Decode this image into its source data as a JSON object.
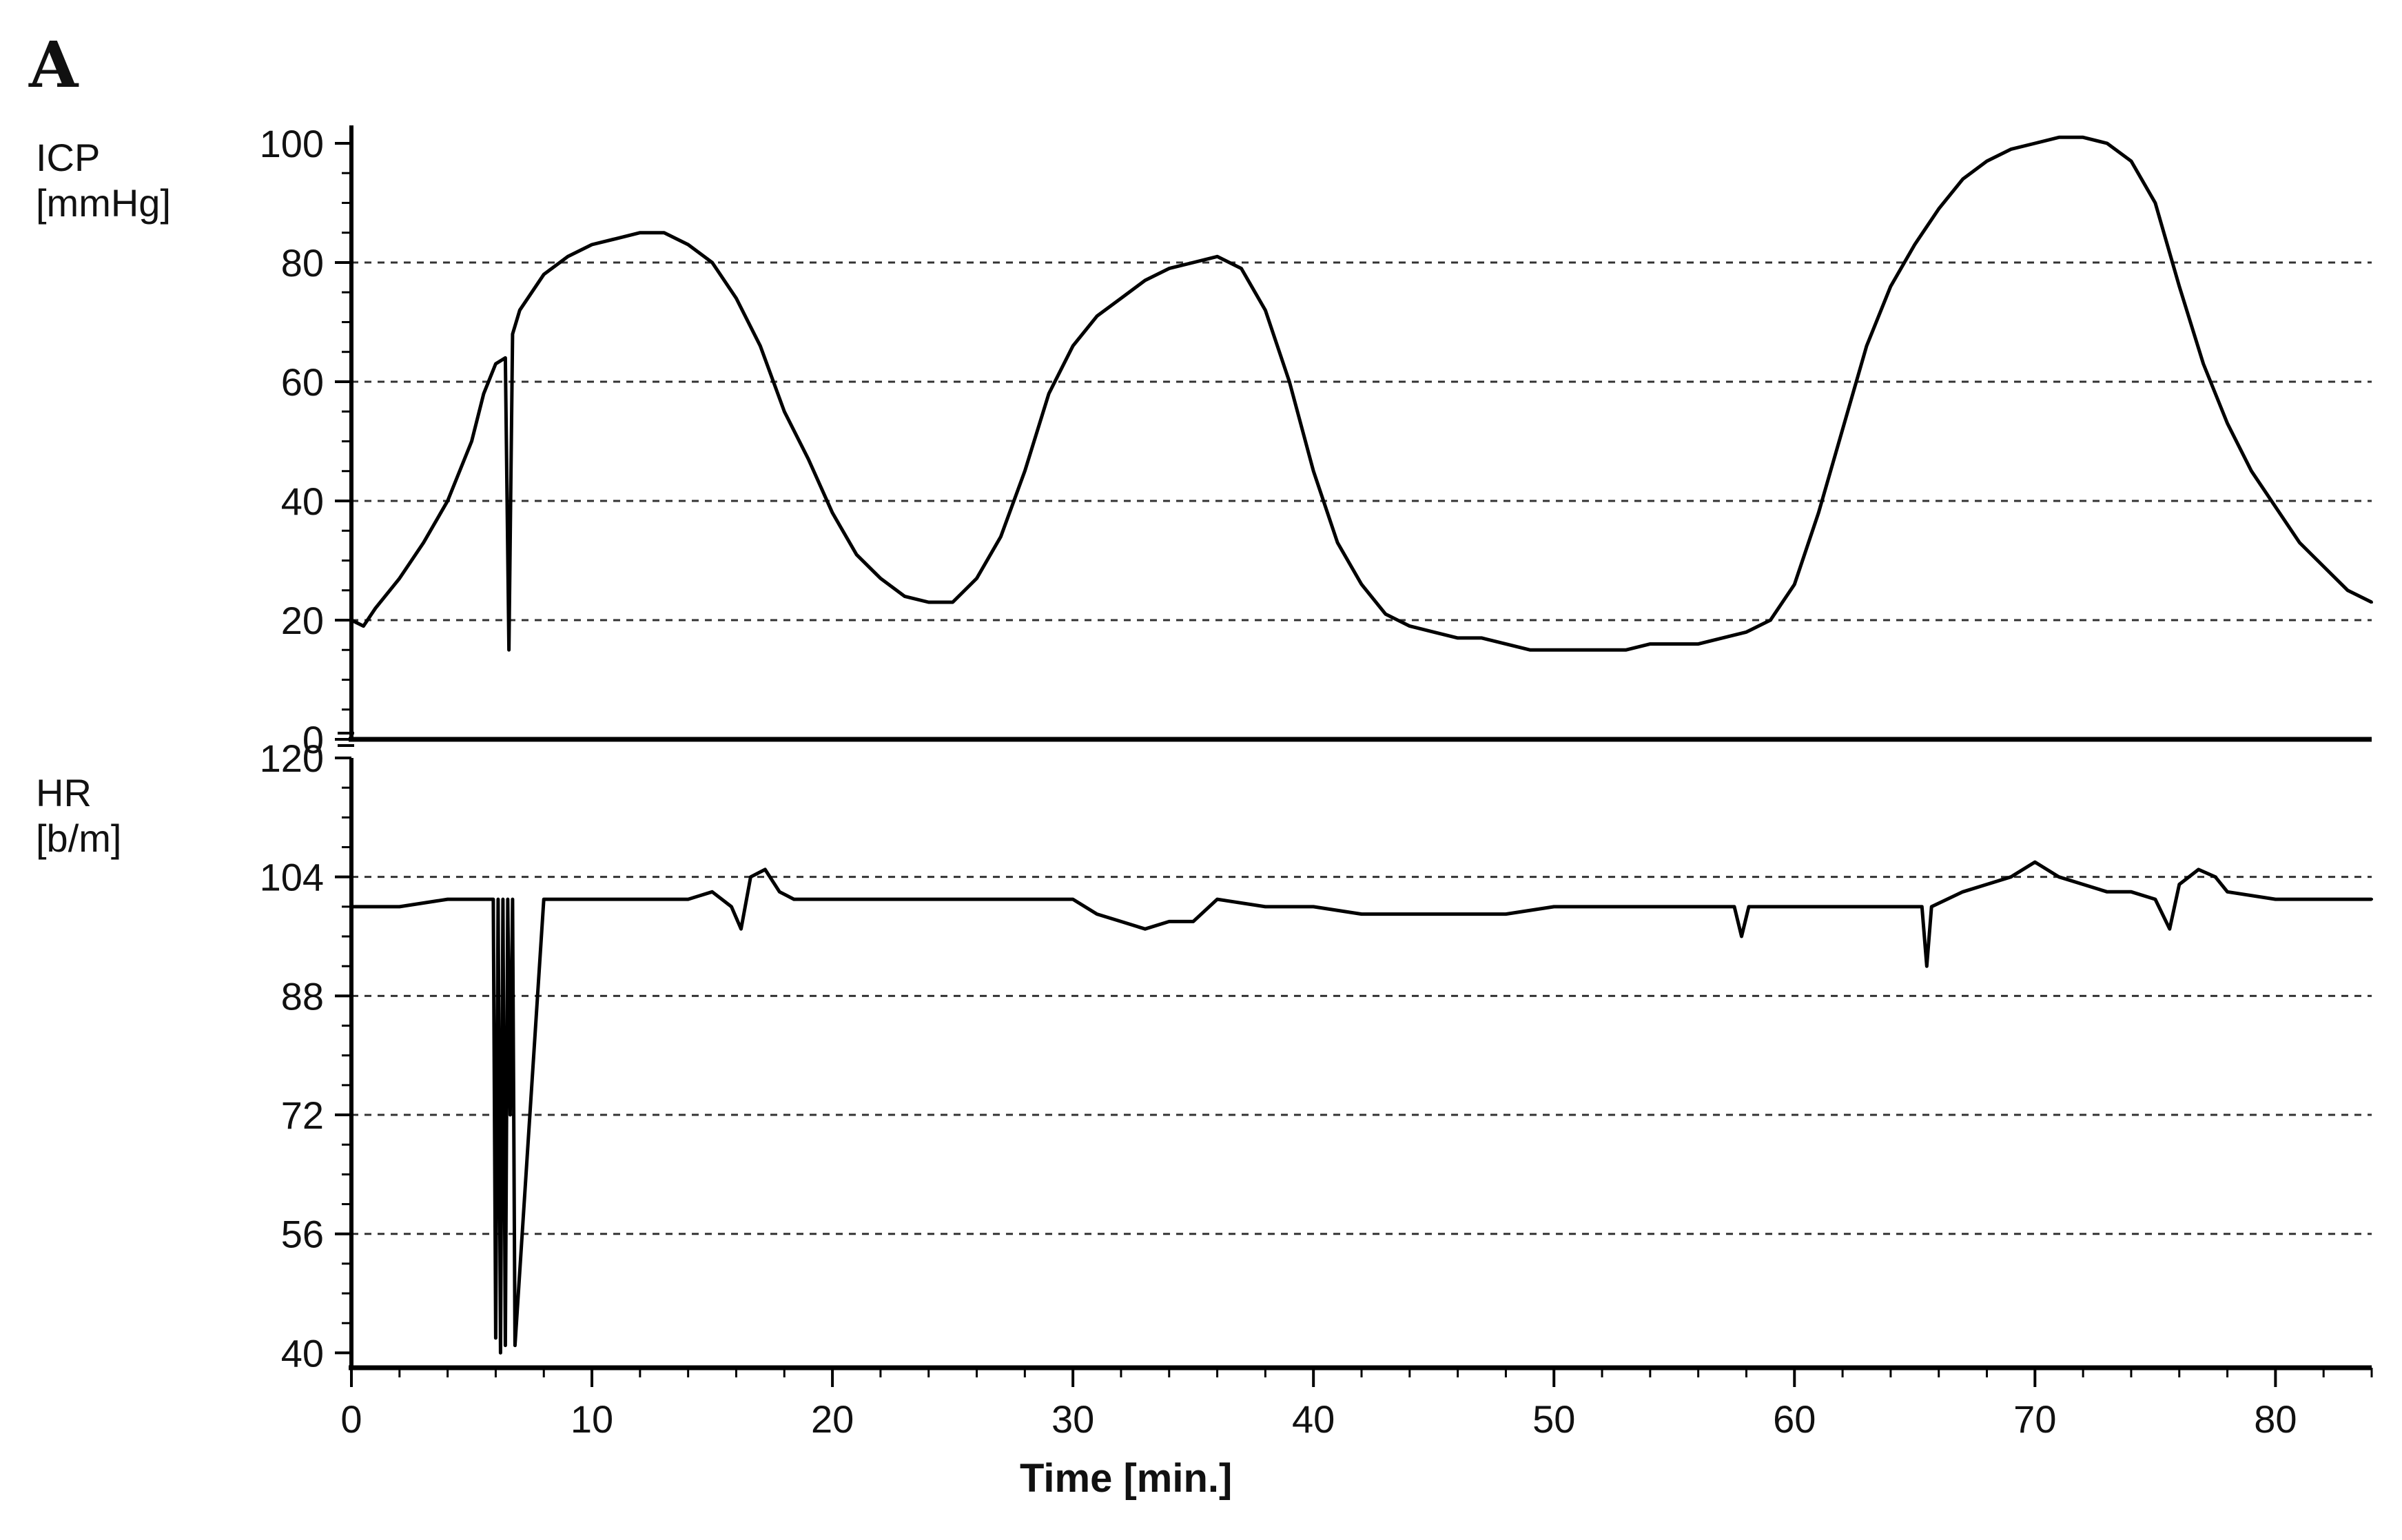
{
  "figure": {
    "panel_label": "A",
    "line_color": "#000000",
    "grid_color": "#333333"
  },
  "chart_data": [
    {
      "name": "icp",
      "type": "line",
      "title": "",
      "ylabel_line1": "ICP",
      "ylabel_line2": "[mmHg]",
      "xlabel": "",
      "xlim": [
        0,
        84
      ],
      "ylim": [
        0,
        103
      ],
      "yticks": [
        0,
        20,
        40,
        60,
        80,
        100
      ],
      "gridlines_y": [
        20,
        40,
        60,
        80
      ],
      "grid": "horizontal dashed",
      "legend": "none",
      "series": [
        {
          "x": [
            0,
            0.5,
            1,
            2,
            3,
            4,
            5,
            5.5,
            6,
            6.4,
            6.55,
            6.7,
            7,
            8,
            9,
            10,
            11,
            12,
            13,
            14,
            15,
            16,
            17,
            18,
            19,
            20,
            21,
            22,
            23,
            24,
            25,
            26,
            27,
            28,
            29,
            30,
            31,
            32,
            33,
            34,
            35,
            36,
            37,
            38,
            39,
            40,
            41,
            42,
            43,
            44,
            45,
            46,
            47,
            48,
            49,
            50,
            51,
            52,
            53,
            54,
            55,
            56,
            57,
            58,
            59,
            60,
            61,
            62,
            63,
            64,
            65,
            66,
            67,
            68,
            69,
            70,
            71,
            72,
            73,
            74,
            75,
            76,
            77,
            78,
            79,
            80,
            81,
            82,
            83,
            84
          ],
          "y": [
            20,
            19,
            22,
            27,
            33,
            40,
            50,
            58,
            63,
            64,
            15,
            68,
            72,
            78,
            81,
            83,
            84,
            85,
            85,
            83,
            80,
            74,
            66,
            55,
            47,
            38,
            31,
            27,
            24,
            23,
            23,
            27,
            34,
            45,
            58,
            66,
            71,
            74,
            77,
            79,
            80,
            81,
            79,
            72,
            60,
            45,
            33,
            26,
            21,
            19,
            18,
            17,
            17,
            16,
            15,
            15,
            15,
            15,
            15,
            16,
            16,
            16,
            17,
            18,
            20,
            26,
            38,
            52,
            66,
            76,
            83,
            89,
            94,
            97,
            99,
            100,
            101,
            101,
            100,
            97,
            90,
            76,
            63,
            53,
            45,
            39,
            33,
            29,
            25,
            23
          ]
        }
      ]
    },
    {
      "name": "hr",
      "type": "line",
      "title": "",
      "ylabel_line1": "HR",
      "ylabel_line2": "[b/m]",
      "xlabel": "Time  [min.]",
      "xlim": [
        0,
        84
      ],
      "ylim": [
        38,
        120
      ],
      "yticks": [
        40,
        56,
        72,
        88,
        104,
        120
      ],
      "xticks": [
        0,
        10,
        20,
        30,
        40,
        50,
        60,
        70,
        80
      ],
      "gridlines_y": [
        56,
        72,
        88,
        104
      ],
      "grid": "horizontal dashed",
      "legend": "none",
      "series": [
        {
          "x": [
            0,
            2,
            4,
            5.9,
            6.0,
            6.1,
            6.2,
            6.3,
            6.4,
            6.5,
            6.6,
            6.7,
            6.8,
            8,
            10,
            12,
            14,
            15,
            15.8,
            16.2,
            16.6,
            17.2,
            17.8,
            18.4,
            20,
            22,
            24,
            26,
            28,
            30,
            31,
            32,
            33,
            34,
            35,
            36,
            38,
            40,
            42,
            44,
            46,
            48,
            50,
            52,
            54,
            56,
            57.5,
            57.8,
            58.1,
            60,
            62,
            64,
            65.3,
            65.5,
            65.7,
            67,
            68,
            69,
            70,
            71,
            72,
            73,
            74,
            75,
            75.6,
            76,
            76.8,
            77.5,
            78,
            80,
            82,
            84
          ],
          "y": [
            100,
            100,
            101,
            101,
            42,
            101,
            40,
            101,
            41,
            101,
            72,
            101,
            41,
            101,
            101,
            101,
            101,
            102,
            100,
            97,
            104,
            105,
            102,
            101,
            101,
            101,
            101,
            101,
            101,
            101,
            99,
            98,
            97,
            98,
            98,
            101,
            100,
            100,
            99,
            99,
            99,
            99,
            100,
            100,
            100,
            100,
            100,
            96,
            100,
            100,
            100,
            100,
            100,
            92,
            100,
            102,
            103,
            104,
            106,
            104,
            103,
            102,
            102,
            101,
            97,
            103,
            105,
            104,
            102,
            101,
            101,
            101
          ]
        }
      ]
    }
  ]
}
